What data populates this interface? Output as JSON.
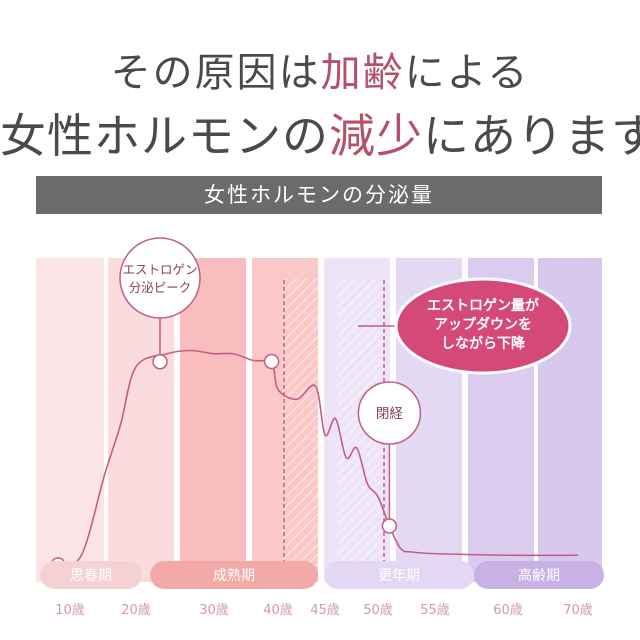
{
  "headline": {
    "line1_pre": "その原因は",
    "line1_accent": "加齢",
    "line1_post": "による",
    "line2_pre": "女性ホルモンの",
    "line2_accent": "減少",
    "line2_post": "にあります"
  },
  "chart_data": {
    "type": "line",
    "title": "女性ホルモンの分泌量",
    "x_ticks": [
      "10歳",
      "20歳",
      "30歳",
      "40歳",
      "45歳",
      "50歳",
      "55歳",
      "60歳",
      "70歳"
    ],
    "series": [
      {
        "x": [
          10,
          13,
          16,
          18,
          20,
          24,
          27,
          30,
          33,
          36,
          39,
          40,
          42,
          44,
          45,
          46,
          47,
          48,
          49,
          50,
          51,
          52,
          53,
          55,
          60,
          70
        ],
        "y": [
          12,
          15,
          40,
          55,
          73,
          77,
          78,
          77,
          77,
          75,
          74,
          66,
          63,
          67,
          52,
          57,
          45,
          48,
          37,
          33,
          24,
          17,
          16,
          15.5,
          15,
          15
        ]
      }
    ],
    "ylim": [
      0,
      100
    ],
    "annotations": {
      "peak": "エストロゲン\n分泌ピーク",
      "fluctuation": "エストロゲン量が\nアップダウンを\nしながら下降",
      "menopause": "閉経"
    },
    "periods": [
      "思春期",
      "成熟期",
      "更年期",
      "高齢期"
    ],
    "colors": {
      "headline_accent": "#b4506a",
      "banner": "#6b6b6b",
      "curve": "#c45d85",
      "callout": "#d44978"
    }
  }
}
